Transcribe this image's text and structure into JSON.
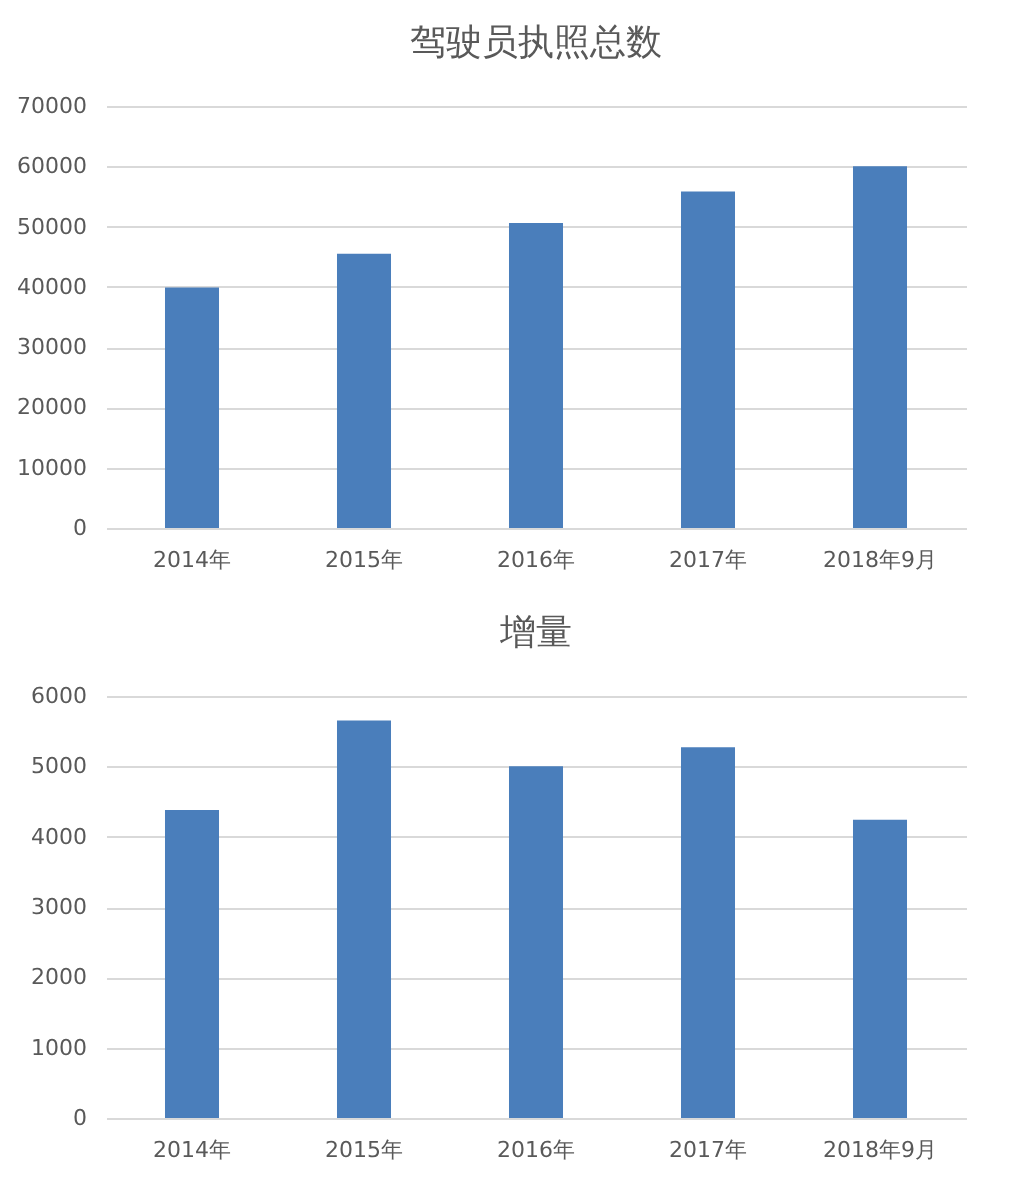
{
  "chart_data": [
    {
      "type": "bar",
      "title": "驾驶员执照总数",
      "categories": [
        "2014年",
        "2015年",
        "2016年",
        "2017年",
        "2018年9月"
      ],
      "values": [
        39900,
        45500,
        50600,
        55800,
        60000
      ],
      "color": "#4a7ebb",
      "ylim": [
        0,
        70000
      ],
      "yticks": [
        0,
        10000,
        20000,
        30000,
        40000,
        50000,
        60000,
        70000
      ],
      "grid": "y"
    },
    {
      "type": "bar",
      "title": "增量",
      "categories": [
        "2014年",
        "2015年",
        "2016年",
        "2017年",
        "2018年9月"
      ],
      "values": [
        4380,
        5650,
        5000,
        5270,
        4240
      ],
      "color": "#4a7ebb",
      "ylim": [
        0,
        6000
      ],
      "yticks": [
        0,
        1000,
        2000,
        3000,
        4000,
        5000,
        6000
      ],
      "grid": "y"
    }
  ]
}
